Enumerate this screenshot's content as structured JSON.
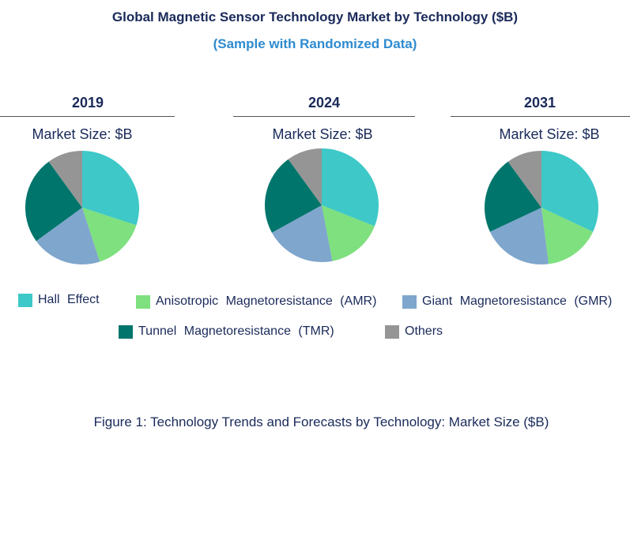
{
  "title": "Global Magnetic Sensor Technology Market by Technology ($B)",
  "subtitle": "(Sample with Randomized Data)",
  "caption": "Figure 1: Technology Trends and Forecasts by Technology: Market Size ($B)",
  "colors": {
    "hall": "#3ec8c8",
    "amr": "#7ee07e",
    "gmr": "#7fa6cc",
    "tmr": "#00756b",
    "others": "#959595"
  },
  "chart_data": {
    "type": "pie",
    "categories": [
      "Hall  Effect",
      "Anisotropic  Magnetoresistance  (AMR)",
      "Giant  Magnetoresistance  (GMR)",
      "Tunnel  Magnetoresistance  (TMR)",
      "Others"
    ],
    "pies": [
      {
        "year": "2019",
        "label": "Market Size: $B",
        "values": [
          30,
          15,
          20,
          25,
          10
        ]
      },
      {
        "year": "2024",
        "label": "Market Size: $B",
        "values": [
          31,
          16,
          20,
          23,
          10
        ]
      },
      {
        "year": "2031",
        "label": "Market Size: $B",
        "values": [
          32,
          16,
          20,
          22,
          10
        ]
      }
    ],
    "legend_position": "bottom"
  }
}
